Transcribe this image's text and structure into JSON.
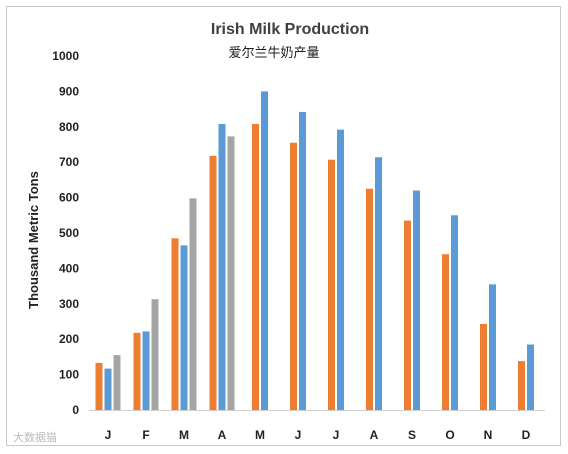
{
  "chart_data": {
    "type": "bar",
    "title": "Irish Milk Production",
    "subtitle": "爱尔兰牛奶产量",
    "xlabel": "",
    "ylabel": "Thousand Metric Tons",
    "ylim": [
      0,
      1000
    ],
    "yticks": [
      0,
      100,
      200,
      300,
      400,
      500,
      600,
      700,
      800,
      900,
      1000
    ],
    "grid": false,
    "legend": "none",
    "categories": [
      "J",
      "F",
      "M",
      "A",
      "M",
      "J",
      "J",
      "A",
      "S",
      "O",
      "N",
      "D"
    ],
    "series": [
      {
        "color": "#ED7D31",
        "values": [
          133,
          218,
          485,
          718,
          808,
          755,
          707,
          625,
          535,
          440,
          243,
          138
        ]
      },
      {
        "color": "#5B9BD5",
        "values": [
          117,
          222,
          465,
          808,
          900,
          842,
          792,
          714,
          620,
          550,
          355,
          185
        ]
      },
      {
        "color": "#A5A5A5",
        "values": [
          155,
          313,
          598,
          773,
          null,
          null,
          null,
          null,
          null,
          null,
          null,
          null
        ]
      }
    ]
  },
  "watermark": "大数据猫"
}
